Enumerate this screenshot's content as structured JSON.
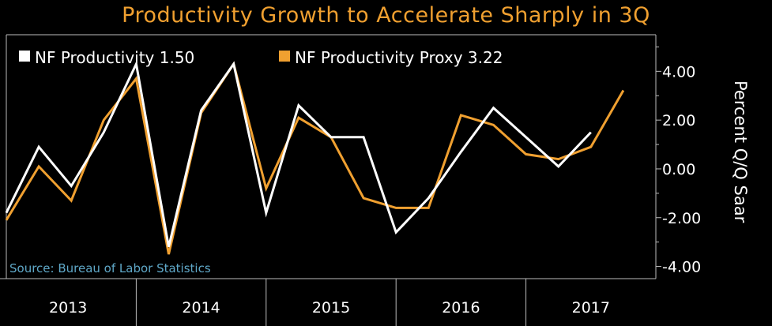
{
  "chart_data": {
    "type": "line",
    "title": "Productivity Growth to Accelerate Sharply in 3Q",
    "ylabel": "Percent Q/Q Saar",
    "ylim": [
      -4.5,
      5.5
    ],
    "yticks": [
      4,
      2,
      0,
      -2,
      -4
    ],
    "ytick_labels": [
      "4.00",
      "2.00",
      "0.00",
      "-2.00",
      "-4.00"
    ],
    "x_labels": [
      "2013",
      "2014",
      "2015",
      "2016",
      "2017"
    ],
    "x": [
      2012.75,
      2013.0,
      2013.25,
      2013.5,
      2013.75,
      2014.0,
      2014.25,
      2014.5,
      2014.75,
      2015.0,
      2015.25,
      2015.5,
      2015.75,
      2016.0,
      2016.25,
      2016.5,
      2016.75,
      2017.0,
      2017.25,
      2017.5
    ],
    "series": [
      {
        "name": "NF Productivity",
        "legend": "NF Productivity 1.50",
        "color": "#ffffff",
        "values": [
          -1.8,
          0.9,
          -0.7,
          1.5,
          4.3,
          -3.2,
          2.4,
          4.3,
          -1.8,
          2.6,
          1.3,
          1.3,
          -2.6,
          -1.2,
          0.7,
          2.5,
          1.3,
          0.1,
          1.5,
          null
        ]
      },
      {
        "name": "NF Productivity Proxy",
        "legend": "NF Productivity Proxy 3.22",
        "color": "#f0a030",
        "values": [
          -2.1,
          0.1,
          -1.3,
          2.0,
          3.7,
          -3.5,
          2.3,
          4.3,
          -0.8,
          2.1,
          1.3,
          -1.2,
          -1.6,
          -1.6,
          2.2,
          1.8,
          0.6,
          0.4,
          0.9,
          3.22
        ]
      }
    ],
    "grid": false,
    "legend_position": "top-left",
    "source": "Source: Bureau of Labor Statistics"
  },
  "colors": {
    "background": "#000000",
    "title": "#f0a030",
    "source": "#5fa8c8"
  }
}
